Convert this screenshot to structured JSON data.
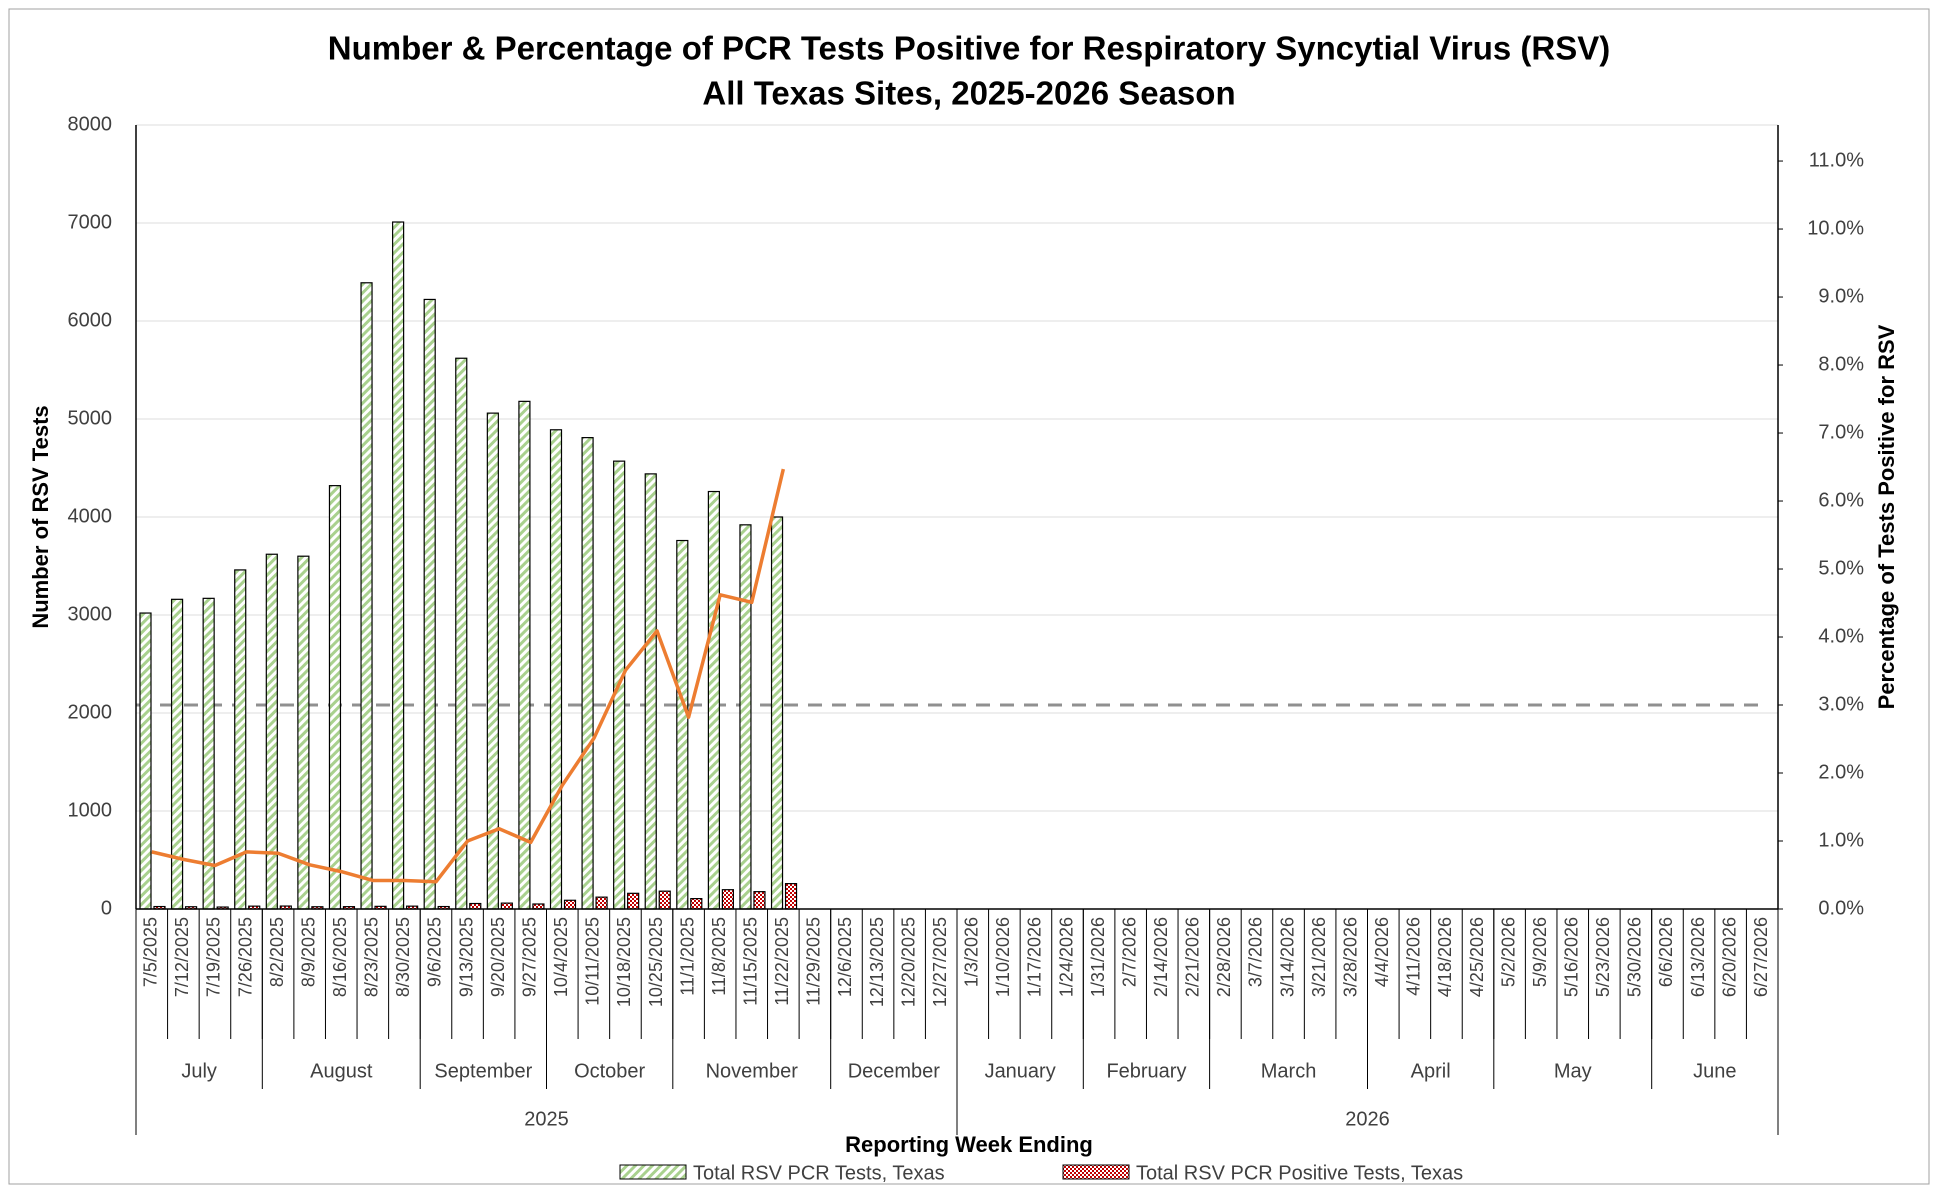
{
  "chart_data": {
    "type": "bar",
    "title": "Number & Percentage of PCR Tests Positive for Respiratory Syncytial Virus (RSV)",
    "subtitle": "All Texas Sites, 2025-2026 Season",
    "x_label": "Reporting Week Ending",
    "y_label": "Number of RSV Tests",
    "y2_label": "Percentage of Tests Positive for RSV",
    "years": [
      {
        "year": "2025",
        "months": [
          {
            "month": "July",
            "weeks": [
              "7/5/2025",
              "7/12/2025",
              "7/19/2025",
              "7/26/2025"
            ]
          },
          {
            "month": "August",
            "weeks": [
              "8/2/2025",
              "8/9/2025",
              "8/16/2025",
              "8/23/2025",
              "8/30/2025"
            ]
          },
          {
            "month": "September",
            "weeks": [
              "9/6/2025",
              "9/13/2025",
              "9/20/2025",
              "9/27/2025"
            ]
          },
          {
            "month": "October",
            "weeks": [
              "10/4/2025",
              "10/11/2025",
              "10/18/2025",
              "10/25/2025"
            ]
          },
          {
            "month": "November",
            "weeks": [
              "11/1/2025",
              "11/8/2025",
              "11/15/2025",
              "11/22/2025",
              "11/29/2025"
            ]
          },
          {
            "month": "December",
            "weeks": [
              "12/6/2025",
              "12/13/2025",
              "12/20/2025",
              "12/27/2025"
            ]
          }
        ]
      },
      {
        "year": "2026",
        "months": [
          {
            "month": "January",
            "weeks": [
              "1/3/2026",
              "1/10/2026",
              "1/17/2026",
              "1/24/2026"
            ]
          },
          {
            "month": "February",
            "weeks": [
              "1/31/2026",
              "2/7/2026",
              "2/14/2026",
              "2/21/2026"
            ]
          },
          {
            "month": "March",
            "weeks": [
              "2/28/2026",
              "3/7/2026",
              "3/14/2026",
              "3/21/2026",
              "3/28/2026"
            ]
          },
          {
            "month": "April",
            "weeks": [
              "4/4/2026",
              "4/11/2026",
              "4/18/2026",
              "4/25/2026"
            ]
          },
          {
            "month": "May",
            "weeks": [
              "5/2/2026",
              "5/9/2026",
              "5/16/2026",
              "5/23/2026",
              "5/30/2026"
            ]
          },
          {
            "month": "June",
            "weeks": [
              "6/6/2026",
              "6/13/2026",
              "6/20/2026",
              "6/27/2026"
            ]
          }
        ]
      }
    ],
    "series": [
      {
        "name": "Total RSV PCR Tests, Texas",
        "color": "#a9d18e",
        "pattern": "hatch",
        "values": [
          3020,
          3160,
          3170,
          3460,
          3620,
          3600,
          4320,
          6390,
          7010,
          6220,
          5620,
          5060,
          5180,
          4890,
          4810,
          4570,
          4440,
          3760,
          4260,
          3920,
          4000,
          null,
          null,
          null,
          null,
          null,
          null,
          null,
          null,
          null,
          null,
          null,
          null,
          null,
          null,
          null,
          null,
          null,
          null,
          null,
          null,
          null,
          null,
          null,
          null,
          null,
          null,
          null,
          null,
          null,
          null,
          null
        ]
      },
      {
        "name": "Total RSV PCR Positive Tests, Texas",
        "color": "#c00000",
        "pattern": "dots",
        "values": [
          25,
          23,
          20,
          29,
          30,
          23,
          24,
          27,
          29,
          25,
          56,
          60,
          51,
          89,
          121,
          160,
          182,
          106,
          197,
          177,
          259,
          null,
          null,
          null,
          null,
          null,
          null,
          null,
          null,
          null,
          null,
          null,
          null,
          null,
          null,
          null,
          null,
          null,
          null,
          null,
          null,
          null,
          null,
          null,
          null,
          null,
          null,
          null,
          null,
          null,
          null,
          null
        ]
      },
      {
        "type": "line",
        "axis": "y2",
        "color": "#ed7d31",
        "values": [
          0.84,
          0.73,
          0.64,
          0.84,
          0.82,
          0.65,
          0.55,
          0.42,
          0.42,
          0.4,
          1.0,
          1.18,
          0.98,
          1.82,
          2.51,
          3.51,
          4.09,
          2.82,
          4.62,
          4.51,
          6.47,
          null,
          null,
          null,
          null,
          null,
          null,
          null,
          null,
          null,
          null,
          null,
          null,
          null,
          null,
          null,
          null,
          null,
          null,
          null,
          null,
          null,
          null,
          null,
          null,
          null,
          null,
          null,
          null,
          null,
          null,
          null
        ]
      }
    ],
    "reference_line": {
      "value": 3.0,
      "axis": "y2",
      "color": "#909090",
      "dash": true
    },
    "ylim": [
      0,
      8000
    ],
    "yticks": [
      0,
      1000,
      2000,
      3000,
      4000,
      5000,
      6000,
      7000,
      8000
    ],
    "y2lim": [
      0,
      11.53
    ],
    "y2ticks": [
      {
        "value": 0,
        "label": "0.0%"
      },
      {
        "value": 1,
        "label": "1.0%"
      },
      {
        "value": 2,
        "label": "2.0%"
      },
      {
        "value": 3,
        "label": "3.0%"
      },
      {
        "value": 4,
        "label": "4.0%"
      },
      {
        "value": 5,
        "label": "5.0%"
      },
      {
        "value": 6,
        "label": "6.0%"
      },
      {
        "value": 7,
        "label": "7.0%"
      },
      {
        "value": 8,
        "label": "8.0%"
      },
      {
        "value": 9,
        "label": "9.0%"
      },
      {
        "value": 10,
        "label": "10.0%"
      },
      {
        "value": 11,
        "label": "11.0%"
      }
    ],
    "grid": true
  }
}
